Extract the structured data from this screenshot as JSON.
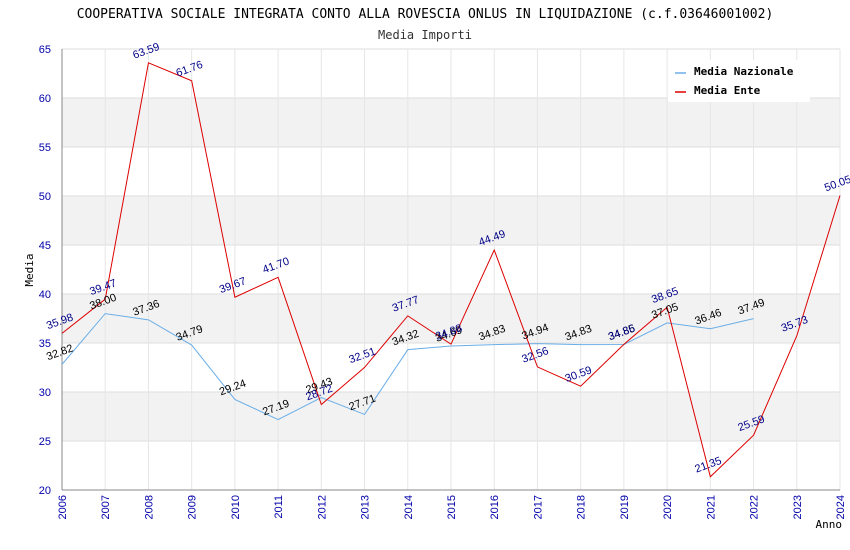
{
  "chart_data": {
    "type": "line",
    "title": "COOPERATIVA SOCIALE INTEGRATA CONTO ALLA ROVESCIA ONLUS IN LIQUIDAZIONE (c.f.03646001002)",
    "subtitle": "Media Importi",
    "xlabel": "Anno",
    "ylabel": "Media",
    "ylim": [
      20,
      65
    ],
    "yticks": [
      "20",
      "25",
      "30",
      "35",
      "40",
      "45",
      "50",
      "55",
      "60",
      "65"
    ],
    "categories": [
      "2006",
      "2007",
      "2008",
      "2009",
      "2010",
      "2011",
      "2012",
      "2013",
      "2014",
      "2015",
      "2016",
      "2017",
      "2018",
      "2019",
      "2020",
      "2021",
      "2022",
      "2023",
      "2024"
    ],
    "grid": true,
    "legend_position": "top-right",
    "series": [
      {
        "name": "Media Nazionale",
        "color": "#6aaee8",
        "label_color": "#000000",
        "values": [
          32.82,
          38.0,
          37.36,
          34.79,
          29.24,
          27.19,
          29.43,
          27.71,
          34.32,
          34.69,
          34.83,
          34.94,
          34.83,
          34.85,
          37.05,
          36.46,
          37.49,
          null,
          null
        ],
        "labels": [
          "32.82",
          "38.00",
          "37.36",
          "34.79",
          "29.24",
          "27.19",
          "29.43",
          "27.71",
          "34.32",
          "34.69",
          "34.83",
          "34.94",
          "34.83",
          "34.85",
          "37.05",
          "36.46",
          "37.49",
          "",
          ""
        ]
      },
      {
        "name": "Media Ente",
        "color": "#dd0000",
        "label_color": "#000088",
        "values": [
          35.98,
          39.47,
          63.59,
          61.76,
          39.67,
          41.7,
          28.72,
          32.51,
          37.77,
          34.88,
          44.49,
          32.56,
          30.59,
          34.86,
          38.65,
          21.35,
          25.59,
          35.73,
          50.05
        ],
        "labels": [
          "35.98",
          "39.47",
          "63.59",
          "61.76",
          "39.67",
          "41.70",
          "28.72",
          "32.51",
          "37.77",
          "34.88",
          "44.49",
          "32.56",
          "30.59",
          "34.86",
          "38.65",
          "21.35",
          "25.59",
          "35.73",
          "50.05"
        ]
      }
    ]
  }
}
